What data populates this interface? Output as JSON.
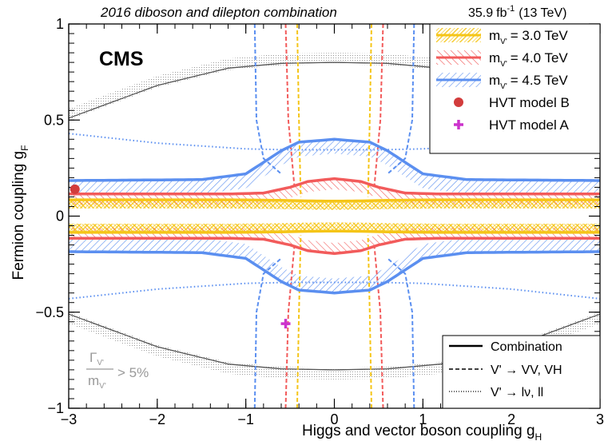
{
  "chart_data": {
    "type": "line",
    "header_left": "2016 diboson and dilepton combination",
    "header_right_lumi": "35.9",
    "header_right_unit": "fb",
    "header_right_exp": "-1",
    "header_right_energy": "(13 TeV)",
    "experiment": "CMS",
    "xlabel": "Higgs and vector boson coupling g",
    "xlabel_sub": "H",
    "ylabel": "Fermion coupling g",
    "ylabel_sub": "F",
    "xlim": [
      -3,
      3
    ],
    "ylim": [
      -1,
      1
    ],
    "x_ticks": [
      -3,
      -2,
      -1,
      0,
      1,
      2,
      3
    ],
    "x_tick_labels": [
      "−3",
      "−2",
      "−1",
      "0",
      "1",
      "2",
      "3"
    ],
    "y_ticks": [
      -1,
      -0.5,
      0,
      0.5,
      1
    ],
    "y_tick_labels": [
      "−1",
      "−0.5",
      "0",
      "0.5",
      "1"
    ],
    "width_note": {
      "gamma": "Γ",
      "sub": "V'",
      "denom": "m",
      "cond": "> 5%"
    },
    "legend_masses": [
      {
        "m": "m",
        "sub": "V'",
        "value": "= 3.0 TeV",
        "color": "#f5c518"
      },
      {
        "m": "m",
        "sub": "V'",
        "value": "= 4.0 TeV",
        "color": "#f25b5b"
      },
      {
        "m": "m",
        "sub": "V'",
        "value": "= 4.5 TeV",
        "color": "#5b8ff0"
      }
    ],
    "legend_models": [
      {
        "label": "HVT model B",
        "color": "#d23c3c",
        "marker": "circle"
      },
      {
        "label": "HVT model A",
        "color": "#cc33cc",
        "marker": "plus"
      }
    ],
    "legend_styles": [
      {
        "label": "Combination",
        "dash": "solid"
      },
      {
        "label": "V' → VV, VH",
        "dash": "dashed"
      },
      {
        "label": "V' → lν, ll",
        "dash": "dotted"
      }
    ],
    "model_points": [
      {
        "name": "HVT model B",
        "x": -2.93,
        "y": 0.14
      },
      {
        "name": "HVT model A",
        "x": -0.55,
        "y": -0.56
      }
    ],
    "series": [
      {
        "name": "combination 3.0 TeV",
        "color": "#f5c518",
        "style": "solid",
        "x": [
          -3,
          -1.2,
          -0.6,
          -0.3,
          0,
          0.3,
          0.6,
          1.2,
          3
        ],
        "y": [
          0.085,
          0.085,
          0.082,
          0.079,
          0.078,
          0.079,
          0.082,
          0.085,
          0.085
        ]
      },
      {
        "name": "combination 4.0 TeV",
        "color": "#f25b5b",
        "style": "solid",
        "x": [
          -3,
          -1.2,
          -0.8,
          -0.5,
          -0.3,
          0,
          0.3,
          0.5,
          0.8,
          1.2,
          3
        ],
        "y": [
          0.115,
          0.115,
          0.12,
          0.15,
          0.18,
          0.195,
          0.18,
          0.15,
          0.12,
          0.115,
          0.115
        ]
      },
      {
        "name": "combination 4.5 TeV",
        "color": "#5b8ff0",
        "style": "solid",
        "x": [
          -3,
          -1.5,
          -1.0,
          -0.8,
          -0.6,
          -0.4,
          0,
          0.4,
          0.6,
          0.8,
          1.0,
          1.5,
          3
        ],
        "y": [
          0.185,
          0.19,
          0.22,
          0.28,
          0.34,
          0.385,
          0.4,
          0.385,
          0.34,
          0.28,
          0.22,
          0.19,
          0.185
        ]
      },
      {
        "name": "VV/VH 3.0 TeV",
        "color": "#f5c518",
        "style": "dashed",
        "x": [
          -0.42,
          -0.4,
          -0.38
        ],
        "y": [
          1,
          0.5,
          0.1
        ]
      },
      {
        "name": "VV/VH 4.0 TeV",
        "color": "#f25b5b",
        "style": "dashed",
        "x": [
          -0.55,
          -0.52,
          -0.45
        ],
        "y": [
          1,
          0.5,
          0.15
        ]
      },
      {
        "name": "VV/VH 4.5 TeV",
        "color": "#5b8ff0",
        "style": "dashed",
        "x": [
          -0.9,
          -0.88,
          -0.8,
          -0.6
        ],
        "y": [
          1,
          0.5,
          0.3,
          0.22
        ]
      },
      {
        "name": "lν/ll 4.5 TeV",
        "color": "#5b8ff0",
        "style": "dotted",
        "x": [
          -3,
          -2,
          -1,
          -0.5,
          0,
          0.5,
          1,
          2,
          3
        ],
        "y": [
          0.43,
          0.38,
          0.35,
          0.345,
          0.345,
          0.345,
          0.35,
          0.38,
          0.43
        ]
      },
      {
        "name": "lν/ll 3.0/4.0 TeV",
        "color": "#555555",
        "style": "solid",
        "x": [
          -3,
          -2,
          -1.2,
          -0.6,
          0,
          0.6,
          1.2,
          2,
          3
        ],
        "y": [
          0.51,
          0.68,
          0.77,
          0.795,
          0.8,
          0.795,
          0.77,
          0.68,
          0.51
        ]
      }
    ]
  }
}
